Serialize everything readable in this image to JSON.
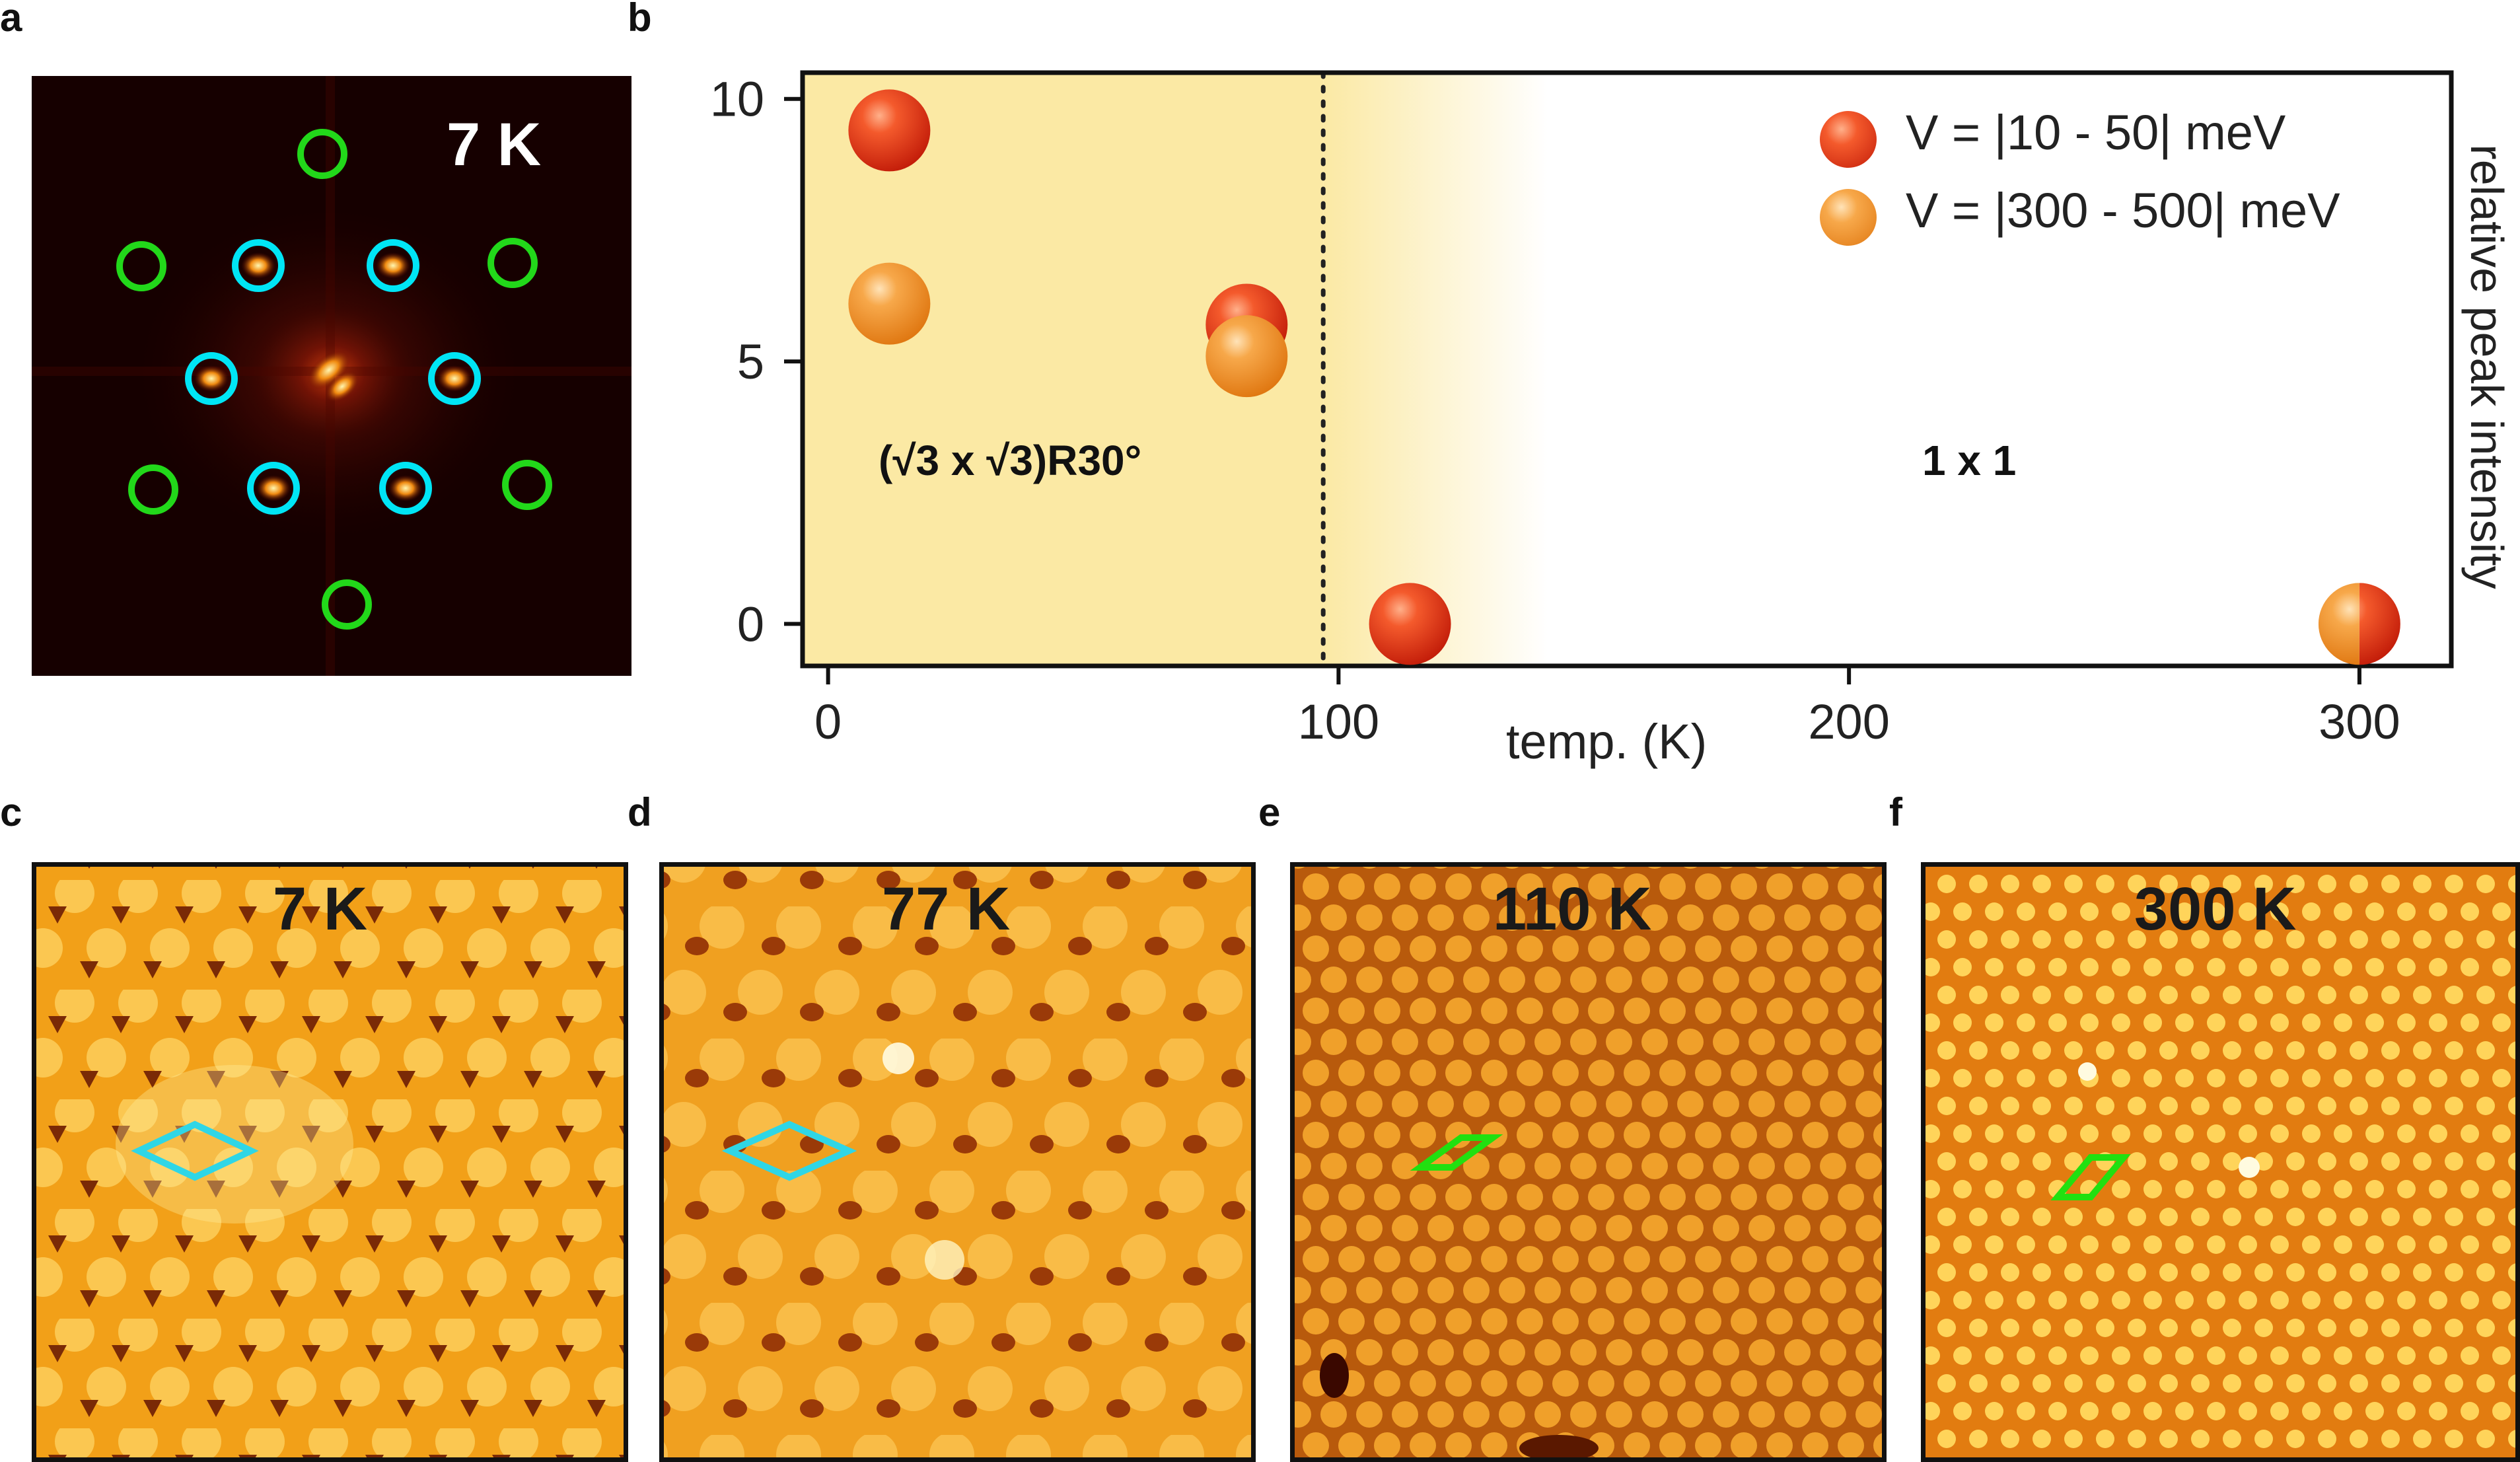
{
  "panels": {
    "a": {
      "letter": "a",
      "label": "7 K"
    },
    "b": {
      "letter": "b"
    },
    "c": {
      "letter": "c",
      "label": "7 K"
    },
    "d": {
      "letter": "d",
      "label": "77 K"
    },
    "e": {
      "letter": "e",
      "label": "110 K"
    },
    "f": {
      "letter": "f",
      "label": "300 K"
    }
  },
  "colors": {
    "red_series": "#e8391c",
    "orange_series": "#f39a3a",
    "phase_shade": "#fbe9a4",
    "fft_spot_inner": "#00e5f5",
    "fft_spot_outer": "#22d81a",
    "unit_cell_sqrt3": "#2fd6e6",
    "unit_cell_1x1": "#21e010"
  },
  "chart_data": {
    "type": "scatter",
    "title": "",
    "xlabel": "temp. (K)",
    "ylabel": "relative peak intensity",
    "xlim": [
      -5,
      318
    ],
    "ylim": [
      -0.8,
      10.5
    ],
    "xticks": [
      0,
      100,
      200,
      300
    ],
    "yticks": [
      0,
      5,
      10
    ],
    "grid": false,
    "legend_position": "top-right",
    "series": [
      {
        "name": "V = |10 - 50| meV",
        "color": "#e8391c",
        "points": [
          {
            "x": 12,
            "y": 9.4
          },
          {
            "x": 82,
            "y": 5.7
          },
          {
            "x": 114,
            "y": 0
          },
          {
            "x": 300,
            "y": 0
          }
        ]
      },
      {
        "name": "V = |300 - 500| meV",
        "color": "#f39a3a",
        "points": [
          {
            "x": 12,
            "y": 6.1
          },
          {
            "x": 82,
            "y": 5.1
          },
          {
            "x": 300,
            "y": 0
          }
        ]
      }
    ],
    "transition_temperature": 97,
    "regions": [
      {
        "label": "(√3 x √3)R30°",
        "x_range": [
          -5,
          97
        ]
      },
      {
        "label": "1 x 1",
        "x_range": [
          97,
          318
        ]
      }
    ]
  }
}
